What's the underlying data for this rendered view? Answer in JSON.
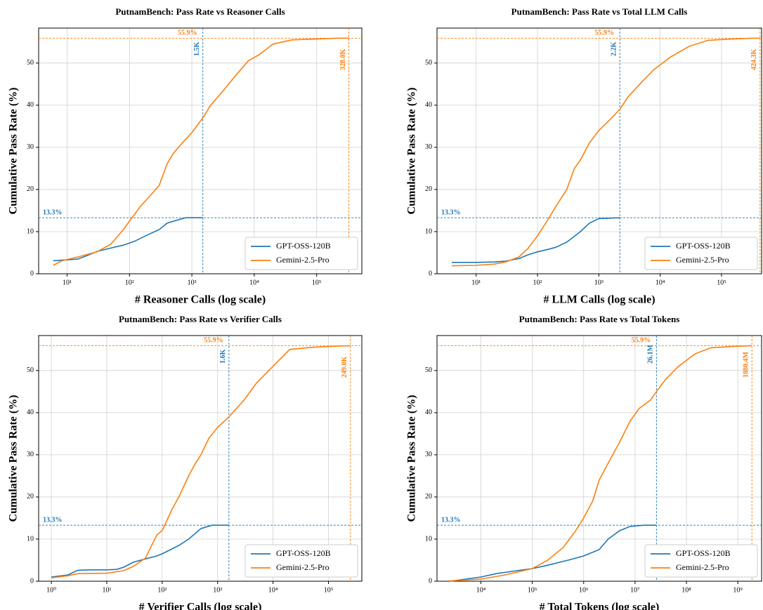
{
  "chart_data": [
    {
      "type": "line",
      "title": "PutnamBench: Pass Rate vs Reasoner Calls",
      "x_label": "# Reasoner Calls (log scale)",
      "y_label": "Cumulative Pass Rate (%)",
      "xscale": "log",
      "grid": true,
      "legend": "lower right",
      "xlim": [
        3.5,
        530000
      ],
      "ylim": [
        0,
        58.3
      ],
      "xticks": [
        {
          "value": 10,
          "label": "10¹"
        },
        {
          "value": 100,
          "label": "10²"
        },
        {
          "value": 1000,
          "label": "10³"
        },
        {
          "value": 10000,
          "label": "10⁴"
        },
        {
          "value": 100000,
          "label": "10⁵"
        }
      ],
      "yticks": [
        0,
        10,
        20,
        30,
        40,
        50
      ],
      "series": [
        {
          "name": "GPT-OSS-120B",
          "color": "#1f77b4",
          "x": [
            6,
            10,
            15,
            20,
            30,
            50,
            80,
            120,
            200,
            300,
            400,
            600,
            800,
            1500
          ],
          "values": [
            3.1,
            3.3,
            3.5,
            4.2,
            5.3,
            6.1,
            6.8,
            7.7,
            9.3,
            10.5,
            12.0,
            12.8,
            13.3,
            13.3
          ]
        },
        {
          "name": "Gemini-2.5-Pro",
          "color": "#ff7f0e",
          "x": [
            6,
            8,
            10,
            15,
            20,
            30,
            50,
            80,
            100,
            150,
            200,
            300,
            400,
            500,
            700,
            1000,
            1500,
            2000,
            3000,
            5000,
            8000,
            12000,
            20000,
            40000,
            100000,
            200000,
            328000
          ],
          "values": [
            2.0,
            3.0,
            3.4,
            4.0,
            4.5,
            5.2,
            7.0,
            10.5,
            12.5,
            16,
            18,
            21,
            26,
            28.5,
            31,
            33.5,
            37,
            40,
            43,
            47,
            50.5,
            52,
            54.5,
            55.5,
            55.7,
            55.9,
            55.9
          ]
        }
      ],
      "vlines": [
        {
          "value": 1500,
          "label": "1.5K",
          "color": "#1f77b4"
        },
        {
          "value": 328000,
          "label": "328.0K",
          "color": "#ff7f0e"
        }
      ],
      "hlines": [
        {
          "value": 13.3,
          "label": "13.3%",
          "color": "#1f77b4"
        },
        {
          "value": 55.9,
          "label": "55.9%",
          "color": "#ff7f0e"
        }
      ]
    },
    {
      "type": "line",
      "title": "PutnamBench: Pass Rate vs Total LLM Calls",
      "x_label": "# LLM Calls (log scale)",
      "y_label": "Cumulative Pass Rate (%)",
      "xscale": "log",
      "grid": true,
      "legend": "lower right",
      "xlim": [
        2.3,
        450000
      ],
      "ylim": [
        0,
        58.3
      ],
      "xticks": [
        {
          "value": 10,
          "label": "10¹"
        },
        {
          "value": 100,
          "label": "10²"
        },
        {
          "value": 1000,
          "label": "10³"
        },
        {
          "value": 10000,
          "label": "10⁴"
        },
        {
          "value": 100000,
          "label": "10⁵"
        }
      ],
      "yticks": [
        0,
        10,
        20,
        30,
        40,
        50
      ],
      "series": [
        {
          "name": "GPT-OSS-120B",
          "color": "#1f77b4",
          "x": [
            4,
            10,
            20,
            30,
            50,
            70,
            100,
            150,
            200,
            300,
            500,
            700,
            1000,
            2200
          ],
          "values": [
            2.7,
            2.7,
            2.8,
            3.0,
            3.6,
            4.5,
            5.2,
            5.8,
            6.3,
            7.5,
            10,
            12,
            13.1,
            13.3
          ]
        },
        {
          "name": "Gemini-2.5-Pro",
          "color": "#ff7f0e",
          "x": [
            4,
            10,
            20,
            30,
            50,
            70,
            100,
            150,
            200,
            300,
            400,
            500,
            700,
            1000,
            1500,
            2200,
            3000,
            5000,
            8000,
            15000,
            30000,
            60000,
            150000,
            300000,
            424300
          ],
          "values": [
            1.9,
            2.0,
            2.3,
            2.8,
            4,
            6,
            9,
            13,
            16,
            20,
            25,
            27,
            31,
            34,
            36.5,
            39,
            42,
            45.5,
            48.5,
            51.5,
            54,
            55.4,
            55.7,
            55.9,
            55.9
          ]
        }
      ],
      "vlines": [
        {
          "value": 2200,
          "label": "2.2K",
          "color": "#1f77b4"
        },
        {
          "value": 424300,
          "label": "424.3K",
          "color": "#ff7f0e"
        }
      ],
      "hlines": [
        {
          "value": 13.3,
          "label": "13.3%",
          "color": "#1f77b4"
        },
        {
          "value": 55.9,
          "label": "55.9%",
          "color": "#ff7f0e"
        }
      ]
    },
    {
      "type": "line",
      "title": "PutnamBench: Pass Rate vs Verifier Calls",
      "x_label": "# Verifier Calls (log scale)",
      "y_label": "Cumulative Pass Rate (%)",
      "xscale": "log",
      "grid": true,
      "legend": "lower right",
      "xlim": [
        0.59,
        400000
      ],
      "ylim": [
        0,
        58.3
      ],
      "xticks": [
        {
          "value": 1,
          "label": "10⁰"
        },
        {
          "value": 10,
          "label": "10¹"
        },
        {
          "value": 100,
          "label": "10²"
        },
        {
          "value": 1000,
          "label": "10³"
        },
        {
          "value": 10000,
          "label": "10⁴"
        },
        {
          "value": 100000,
          "label": "10⁵"
        }
      ],
      "yticks": [
        0,
        10,
        20,
        30,
        40,
        50
      ],
      "series": [
        {
          "name": "GPT-OSS-120B",
          "color": "#1f77b4",
          "x": [
            1,
            2,
            3,
            5,
            10,
            15,
            20,
            30,
            50,
            80,
            100,
            200,
            300,
            500,
            800,
            1600
          ],
          "values": [
            1.0,
            1.5,
            2.6,
            2.7,
            2.7,
            2.8,
            3.3,
            4.5,
            5.3,
            6,
            6.5,
            8.5,
            10,
            12.5,
            13.3,
            13.3
          ]
        },
        {
          "name": "Gemini-2.5-Pro",
          "color": "#ff7f0e",
          "x": [
            1,
            2,
            3,
            10,
            20,
            30,
            50,
            80,
            100,
            150,
            200,
            300,
            400,
            500,
            700,
            1000,
            1600,
            3000,
            5000,
            10000,
            20000,
            50000,
            100000,
            249000
          ],
          "values": [
            0.8,
            1.3,
            1.8,
            1.9,
            2.5,
            3.5,
            5.5,
            11,
            12,
            17,
            20,
            25,
            28,
            30,
            34,
            36.5,
            39,
            43,
            47,
            51,
            55,
            55.5,
            55.7,
            55.9
          ]
        }
      ],
      "vlines": [
        {
          "value": 1600,
          "label": "1.6K",
          "color": "#1f77b4"
        },
        {
          "value": 249000,
          "label": "249.0K",
          "color": "#ff7f0e"
        }
      ],
      "hlines": [
        {
          "value": 13.3,
          "label": "13.3%",
          "color": "#1f77b4"
        },
        {
          "value": 55.9,
          "label": "55.9%",
          "color": "#ff7f0e"
        }
      ]
    },
    {
      "type": "line",
      "title": "PutnamBench: Pass Rate vs Total Tokens",
      "x_label": "# Total Tokens (log scale)",
      "y_label": "Cumulative Pass Rate (%)",
      "xscale": "log",
      "grid": true,
      "legend": "lower right",
      "xlim": [
        1400,
        2900000000
      ],
      "ylim": [
        0,
        58.3
      ],
      "xticks": [
        {
          "value": 10000,
          "label": "10⁴"
        },
        {
          "value": 100000,
          "label": "10⁵"
        },
        {
          "value": 1000000,
          "label": "10⁶"
        },
        {
          "value": 10000000,
          "label": "10⁷"
        },
        {
          "value": 100000000,
          "label": "10⁸"
        },
        {
          "value": 1000000000,
          "label": "10⁹"
        }
      ],
      "yticks": [
        0,
        10,
        20,
        30,
        40,
        50
      ],
      "series": [
        {
          "name": "GPT-OSS-120B",
          "color": "#1f77b4",
          "x": [
            2500,
            5000,
            10000,
            20000,
            50000,
            100000,
            200000,
            500000,
            1000000,
            2000000,
            3000000,
            5000000,
            8000000,
            15000000,
            26100000
          ],
          "values": [
            0,
            0.5,
            1.0,
            1.8,
            2.5,
            3,
            3.8,
            5,
            6,
            7.5,
            10,
            12,
            13,
            13.3,
            13.3
          ]
        },
        {
          "name": "Gemini-2.5-Pro",
          "color": "#ff7f0e",
          "x": [
            2500,
            10000,
            30000,
            100000,
            200000,
            400000,
            700000,
            1000000,
            1500000,
            2000000,
            3000000,
            5000000,
            8000000,
            12000000,
            20000000,
            26100000,
            40000000,
            70000000,
            150000000,
            300000000,
            800000000,
            1880400000
          ],
          "values": [
            0.1,
            0.5,
            1.5,
            3,
            5,
            8,
            12,
            15,
            19,
            24,
            28,
            33,
            38,
            41,
            43,
            45,
            48,
            51,
            54,
            55.4,
            55.7,
            55.9
          ]
        }
      ],
      "vlines": [
        {
          "value": 26100000,
          "label": "26.1M",
          "color": "#1f77b4"
        },
        {
          "value": 1880400000,
          "label": "1880.4M",
          "color": "#ff7f0e"
        }
      ],
      "hlines": [
        {
          "value": 13.3,
          "label": "13.3%",
          "color": "#1f77b4"
        },
        {
          "value": 55.9,
          "label": "55.9%",
          "color": "#ff7f0e"
        }
      ]
    }
  ]
}
